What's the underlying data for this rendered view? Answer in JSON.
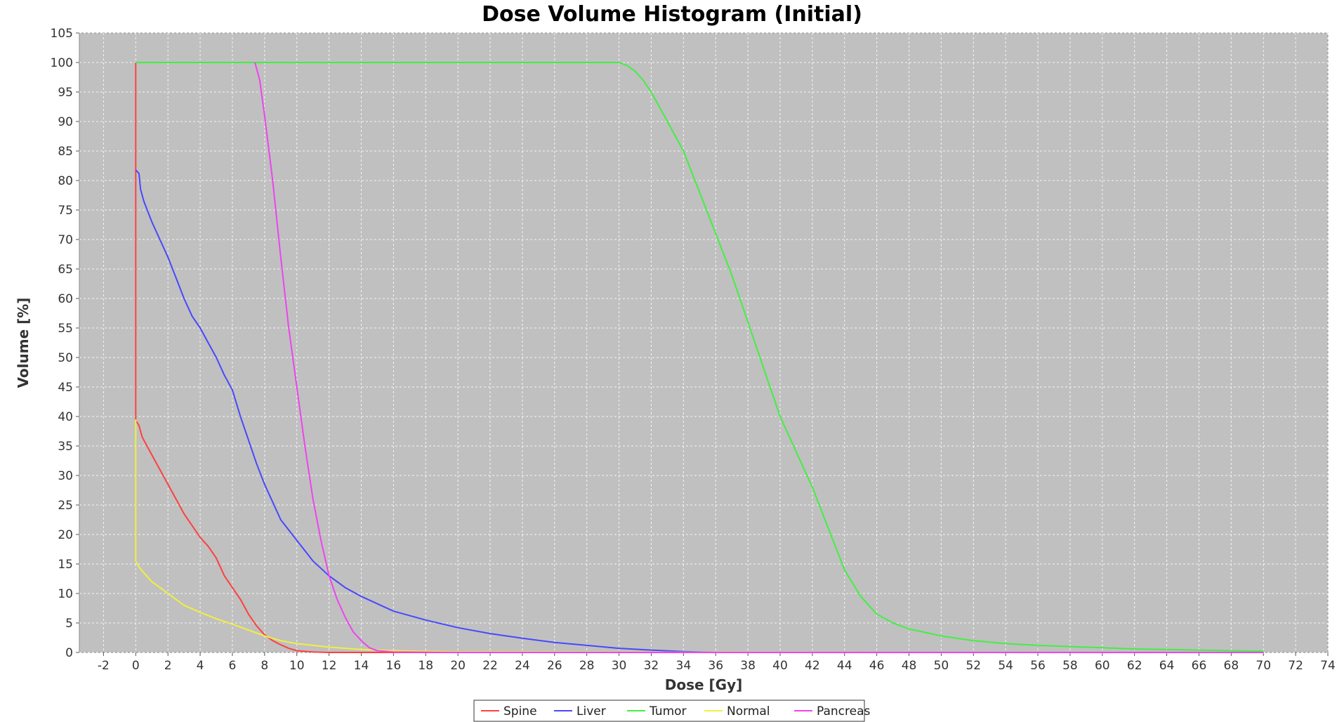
{
  "chart_data": {
    "type": "line",
    "title": "Dose Volume Histogram (Initial)",
    "xlabel": "Dose [Gy]",
    "ylabel": "Volume [%]",
    "xlim": [
      -3.5,
      74
    ],
    "ylim": [
      0,
      105
    ],
    "xticks": [
      -2,
      0,
      2,
      4,
      6,
      8,
      10,
      12,
      14,
      16,
      18,
      20,
      22,
      24,
      26,
      28,
      30,
      32,
      34,
      36,
      38,
      40,
      42,
      44,
      46,
      48,
      50,
      52,
      54,
      56,
      58,
      60,
      62,
      64,
      66,
      68,
      70,
      72,
      74
    ],
    "yticks": [
      0,
      5,
      10,
      15,
      20,
      25,
      30,
      35,
      40,
      45,
      50,
      55,
      60,
      65,
      70,
      75,
      80,
      85,
      90,
      95,
      100,
      105
    ],
    "grid": true,
    "legend_position": "bottom-center",
    "plot_background": "#c0c0c0",
    "series": [
      {
        "name": "Spine",
        "color": "#ff4040",
        "x": [
          0,
          0,
          0.2,
          0.4,
          0.6,
          1,
          1.5,
          2,
          2.5,
          3,
          3.5,
          4,
          4.5,
          5,
          5.5,
          6,
          6.5,
          7,
          7.5,
          8,
          8.5,
          9,
          9.5,
          10,
          11,
          12,
          14,
          20,
          40,
          70
        ],
        "y": [
          100,
          39.3,
          38.5,
          36.5,
          35.5,
          33.5,
          31,
          28.5,
          26,
          23.5,
          21.5,
          19.5,
          18,
          16,
          13,
          11,
          9,
          6.5,
          4.5,
          3,
          2,
          1.3,
          0.7,
          0.3,
          0.1,
          0,
          0,
          0,
          0,
          0
        ]
      },
      {
        "name": "Liver",
        "color": "#4848ff",
        "x": [
          0,
          0.2,
          0.3,
          0.5,
          1,
          1.5,
          2,
          2.5,
          3,
          3.5,
          4,
          4.5,
          5,
          5.5,
          6,
          6.5,
          7,
          7.5,
          8,
          9,
          10,
          11,
          12,
          13,
          14,
          16,
          18,
          20,
          22,
          24,
          26,
          28,
          30,
          32,
          34,
          36,
          70
        ],
        "y": [
          81.8,
          81.2,
          78.5,
          76.5,
          73,
          70,
          67,
          63.5,
          60,
          57,
          55,
          52.5,
          50,
          47,
          44.5,
          40,
          36,
          32,
          28.5,
          22.5,
          19,
          15.5,
          13,
          11,
          9.5,
          7,
          5.5,
          4.2,
          3.2,
          2.4,
          1.7,
          1.2,
          0.7,
          0.4,
          0.15,
          0,
          0
        ]
      },
      {
        "name": "Tumor",
        "color": "#44ee44",
        "x": [
          0,
          30,
          30.5,
          31,
          31.5,
          32,
          33,
          34,
          35,
          36,
          37,
          38,
          39,
          40,
          41,
          42,
          43,
          44,
          45,
          46,
          47,
          48,
          50,
          52,
          54,
          56,
          58,
          60,
          62,
          64,
          66,
          68,
          70
        ],
        "y": [
          100,
          100,
          99.5,
          98.5,
          97,
          95,
          90,
          85,
          78,
          71,
          64,
          56,
          48,
          40,
          34,
          28,
          21,
          14,
          9.5,
          6.5,
          5,
          4,
          2.8,
          2,
          1.5,
          1.2,
          1,
          0.8,
          0.6,
          0.5,
          0.4,
          0.3,
          0.2
        ]
      },
      {
        "name": "Normal",
        "color": "#f0f040",
        "x": [
          0,
          0,
          0,
          0.2,
          0.5,
          1,
          1.5,
          2,
          3,
          4,
          5,
          6,
          7,
          8,
          9,
          10,
          12,
          14,
          16,
          20,
          30,
          50,
          70
        ],
        "y": [
          39.5,
          35,
          15.5,
          14.5,
          13.5,
          12,
          11,
          10,
          8,
          6.8,
          5.7,
          4.8,
          3.8,
          2.8,
          2,
          1.5,
          0.9,
          0.5,
          0.3,
          0.1,
          0.05,
          0,
          0
        ]
      },
      {
        "name": "Pancreas",
        "color": "#ee44ee",
        "x": [
          7.4,
          7.7,
          8,
          8.5,
          9,
          9.5,
          10,
          10.5,
          11,
          11.5,
          12,
          12.5,
          13,
          13.5,
          14,
          14.5,
          15,
          16,
          20,
          70
        ],
        "y": [
          100,
          97,
          91,
          80,
          67,
          55,
          45,
          35,
          26,
          19,
          13,
          9,
          6,
          3.5,
          2,
          0.8,
          0.3,
          0.1,
          0,
          0
        ]
      }
    ]
  }
}
